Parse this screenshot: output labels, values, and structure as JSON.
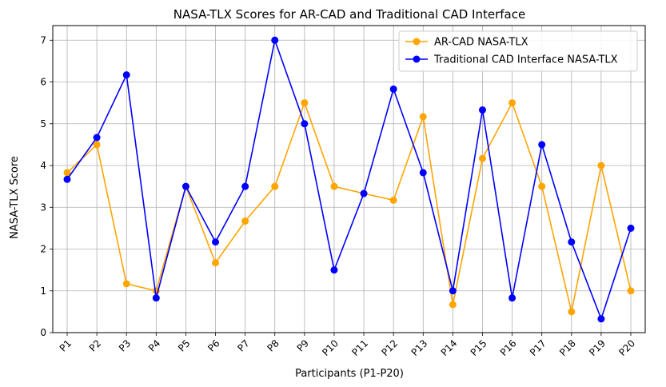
{
  "chart_data": {
    "type": "line",
    "title": "NASA-TLX Scores for AR-CAD and Traditional CAD Interface",
    "xlabel": "Participants (P1-P20)",
    "ylabel": "NASA-TLX Score",
    "ylim": [
      0,
      7.35
    ],
    "yticks": [
      0,
      1,
      2,
      3,
      4,
      5,
      6,
      7
    ],
    "grid": true,
    "legend_position": "top-right",
    "categories": [
      "P1",
      "P2",
      "P3",
      "P4",
      "P5",
      "P6",
      "P7",
      "P8",
      "P9",
      "P10",
      "P11",
      "P12",
      "P13",
      "P14",
      "P15",
      "P16",
      "P17",
      "P18",
      "P19",
      "P20"
    ],
    "series": [
      {
        "name": "AR-CAD NASA-TLX",
        "color": "#ffa500",
        "values": [
          3.83,
          4.5,
          1.17,
          1.0,
          3.5,
          1.67,
          2.67,
          3.5,
          5.5,
          3.5,
          3.33,
          3.17,
          5.17,
          0.67,
          4.17,
          5.5,
          3.5,
          0.5,
          4.0,
          1.0
        ]
      },
      {
        "name": "Traditional CAD Interface NASA-TLX",
        "color": "#0000ff",
        "values": [
          3.67,
          4.67,
          6.17,
          0.83,
          3.5,
          2.17,
          3.5,
          7.0,
          5.0,
          1.5,
          3.33,
          5.83,
          3.83,
          1.0,
          5.33,
          0.83,
          4.5,
          2.17,
          0.33,
          2.5
        ]
      }
    ]
  }
}
